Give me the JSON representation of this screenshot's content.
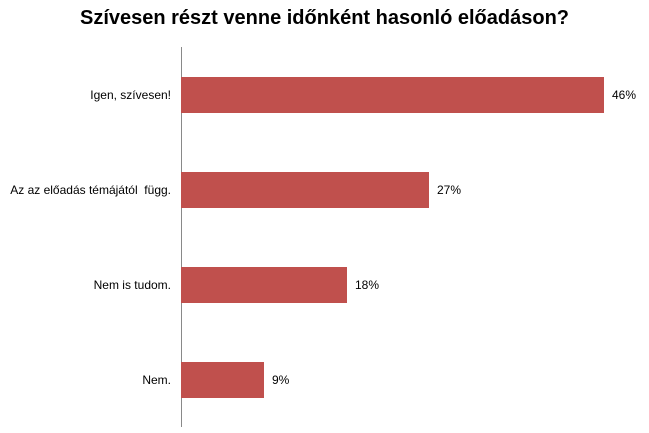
{
  "chart_data": {
    "type": "bar",
    "orientation": "horizontal",
    "title": "Szívesen részt venne időnként hasonló előadáson?",
    "categories": [
      "Igen, szívesen!",
      "Az az előadás témájától  függ.",
      "Nem is tudom.",
      "Nem."
    ],
    "values": [
      46,
      27,
      18,
      9
    ],
    "value_labels": [
      "46%",
      "27%",
      "18%",
      "9%"
    ],
    "xlabel": "",
    "ylabel": "",
    "xlim": [
      0,
      50
    ],
    "grid": false,
    "legend": false,
    "bar_color": "#C0504D",
    "axis_color": "#898989",
    "background": "#FFFFFF"
  }
}
